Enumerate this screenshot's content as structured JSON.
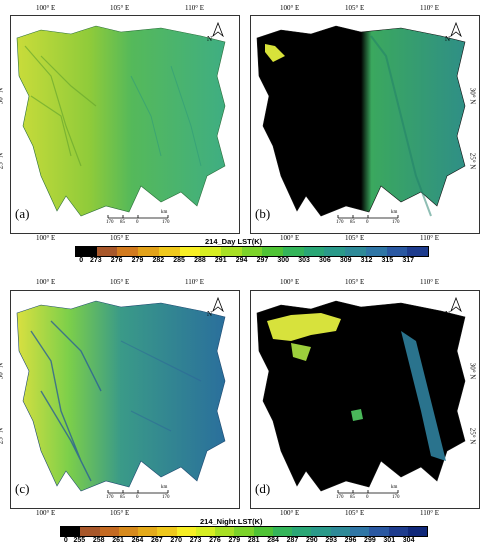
{
  "coordinate_labels": {
    "lon_100": "100°  E",
    "lon_105": "105°  E",
    "lon_110": "110°  E",
    "lat_30": "30°  N",
    "lat_25": "25°  N"
  },
  "panels": [
    {
      "id": "a",
      "label": "(a)",
      "fill": "day_full"
    },
    {
      "id": "b",
      "label": "(b)",
      "fill": "day_masked"
    },
    {
      "id": "c",
      "label": "(c)",
      "fill": "night_full"
    },
    {
      "id": "d",
      "label": "(d)",
      "fill": "night_masked"
    }
  ],
  "north_arrow": "N",
  "scale_bar": {
    "ticks": [
      "170",
      "85",
      "0",
      "170"
    ],
    "unit": "km"
  },
  "day_colorbar": {
    "title": "214_Day LST(K)",
    "ticks": [
      "0",
      "273",
      "276",
      "279",
      "282",
      "285",
      "288",
      "291",
      "294",
      "297",
      "300",
      "303",
      "306",
      "309",
      "312",
      "315",
      "317"
    ],
    "colors": [
      "#000000",
      "#a8572a",
      "#d27a1e",
      "#e2a21a",
      "#efc81c",
      "#f7ee24",
      "#d6ee22",
      "#a8e024",
      "#7cd32a",
      "#4fc335",
      "#34b55a",
      "#2aa776",
      "#2a9a8a",
      "#2e8a98",
      "#2f76a6",
      "#2a58a2",
      "#1e3c8e"
    ]
  },
  "night_colorbar": {
    "title": "214_Night LST(K)",
    "ticks": [
      "0",
      "255",
      "258",
      "261",
      "264",
      "267",
      "270",
      "273",
      "276",
      "279",
      "281",
      "284",
      "287",
      "290",
      "293",
      "296",
      "299",
      "301",
      "304"
    ],
    "colors": [
      "#000000",
      "#a8572a",
      "#c46a22",
      "#d78a1c",
      "#e4aa1a",
      "#efc81c",
      "#f7ee24",
      "#d6ee22",
      "#a8e024",
      "#7cd32a",
      "#4fc335",
      "#34b55a",
      "#2aa776",
      "#2a9a8a",
      "#2e8a98",
      "#2f76a6",
      "#2a58a2",
      "#1e3c8e",
      "#10287a"
    ]
  },
  "colors": {
    "day_west": "#b7d63a",
    "day_east": "#3fae82",
    "night_west": "#c9dc3c",
    "night_east": "#2f7f9c",
    "mask": "#000000"
  }
}
